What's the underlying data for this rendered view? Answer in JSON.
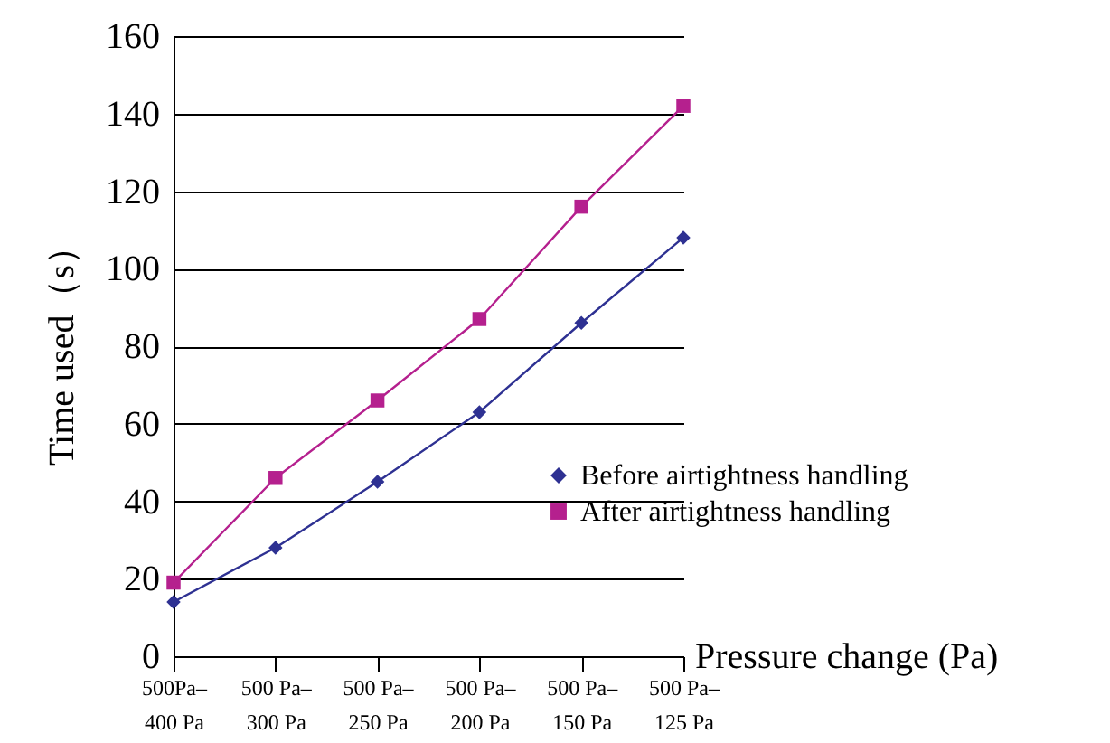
{
  "chart_data": {
    "type": "line",
    "xlabel": "Pressure change (Pa)",
    "ylabel": "Time used（s）",
    "categories": [
      "500Pa–400 Pa",
      "500 Pa–300 Pa",
      "500 Pa–250 Pa",
      "500 Pa–200 Pa",
      "500 Pa–150 Pa",
      "500 Pa–125 Pa"
    ],
    "series": [
      {
        "name": "Before  airtightness handling",
        "color": "#2e3192",
        "marker": "diamond",
        "values": [
          14,
          28,
          45,
          63,
          86,
          108
        ]
      },
      {
        "name": "After airtightness handling",
        "color": "#b5208e",
        "marker": "square",
        "values": [
          19,
          46,
          66,
          87,
          116,
          142
        ]
      }
    ],
    "ylim": [
      0,
      160
    ],
    "yticks": [
      0,
      20,
      40,
      60,
      80,
      100,
      120,
      140,
      160
    ],
    "grid": "y",
    "legend": "right"
  }
}
